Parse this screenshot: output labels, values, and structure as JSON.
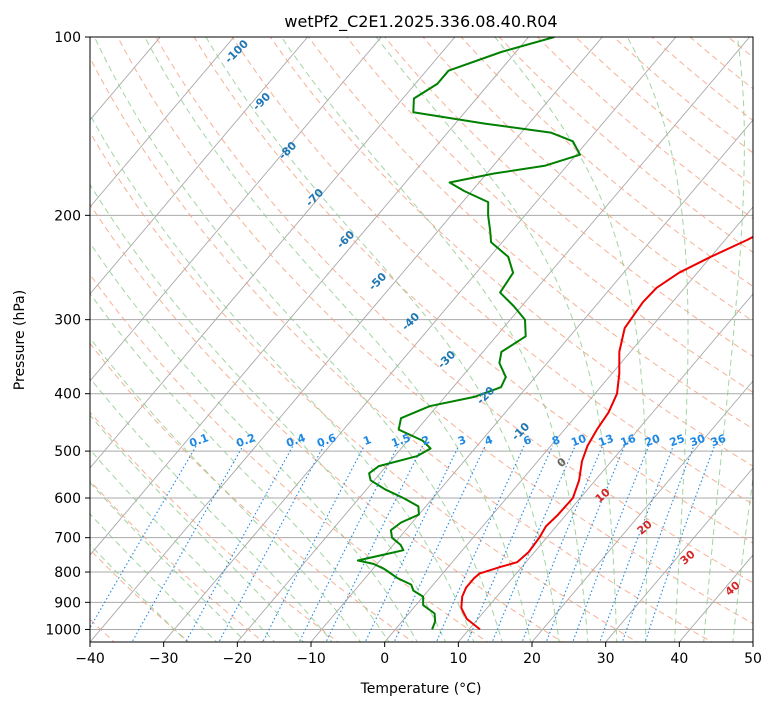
{
  "chart_data": {
    "type": "line",
    "title": "wetPf2_C2E1.2025.336.08.40.R04",
    "xlabel": "Temperature (°C)",
    "ylabel": "Pressure (hPa)",
    "xlim": [
      -40,
      50
    ],
    "ylim": [
      1050,
      100
    ],
    "y_scale": "log",
    "skew": "skew-T log-P",
    "grid": true,
    "x_ticks": [
      -40,
      -30,
      -20,
      -10,
      0,
      10,
      20,
      30,
      40,
      50
    ],
    "y_ticks": [
      1000,
      900,
      800,
      700,
      600,
      500,
      400,
      300,
      200,
      100
    ],
    "series": [
      {
        "color": "#ee0000",
        "points": [
          [
            1000,
            11.5
          ],
          [
            960,
            8.5
          ],
          [
            920,
            6.5
          ],
          [
            880,
            5.3
          ],
          [
            850,
            4.8
          ],
          [
            820,
            4.8
          ],
          [
            805,
            5.0
          ],
          [
            785,
            7.0
          ],
          [
            770,
            8.8
          ],
          [
            740,
            9.2
          ],
          [
            700,
            9.0
          ],
          [
            670,
            8.6
          ],
          [
            640,
            8.9
          ],
          [
            600,
            9.0
          ],
          [
            560,
            7.8
          ],
          [
            520,
            6.0
          ],
          [
            490,
            5.0
          ],
          [
            460,
            4.4
          ],
          [
            430,
            4.0
          ],
          [
            400,
            3.0
          ],
          [
            370,
            1.0
          ],
          [
            340,
            -1.5
          ],
          [
            310,
            -3.5
          ],
          [
            280,
            -4.0
          ],
          [
            265,
            -3.8
          ],
          [
            250,
            -2.5
          ],
          [
            235,
            0.0
          ],
          [
            220,
            3.0
          ],
          [
            205,
            5.5
          ],
          [
            190,
            8.5
          ],
          [
            175,
            11.5
          ],
          [
            160,
            14.0
          ],
          [
            145,
            17.5
          ],
          [
            130,
            21.5
          ],
          [
            120,
            23.0
          ],
          [
            110,
            25.0
          ],
          [
            100,
            25.5
          ]
        ]
      },
      {
        "color": "#008000",
        "points": [
          [
            1000,
            5.0
          ],
          [
            970,
            4.5
          ],
          [
            940,
            3.5
          ],
          [
            910,
            1.0
          ],
          [
            880,
            0.0
          ],
          [
            860,
            -2.0
          ],
          [
            840,
            -3.0
          ],
          [
            820,
            -5.5
          ],
          [
            800,
            -7.5
          ],
          [
            790,
            -8.5
          ],
          [
            775,
            -10.5
          ],
          [
            765,
            -13.0
          ],
          [
            750,
            -10.5
          ],
          [
            735,
            -8.0
          ],
          [
            720,
            -9.0
          ],
          [
            700,
            -11.0
          ],
          [
            680,
            -12.0
          ],
          [
            660,
            -11.5
          ],
          [
            640,
            -10.0
          ],
          [
            620,
            -11.0
          ],
          [
            600,
            -14.0
          ],
          [
            580,
            -17.5
          ],
          [
            560,
            -20.5
          ],
          [
            545,
            -21.5
          ],
          [
            530,
            -21.0
          ],
          [
            510,
            -17.0
          ],
          [
            495,
            -16.0
          ],
          [
            480,
            -18.0
          ],
          [
            460,
            -22.5
          ],
          [
            440,
            -23.5
          ],
          [
            420,
            -21.0
          ],
          [
            405,
            -16.0
          ],
          [
            390,
            -13.5
          ],
          [
            375,
            -14.0
          ],
          [
            355,
            -16.5
          ],
          [
            340,
            -17.5
          ],
          [
            320,
            -16.0
          ],
          [
            300,
            -18.0
          ],
          [
            285,
            -21.0
          ],
          [
            270,
            -24.5
          ],
          [
            250,
            -25.0
          ],
          [
            235,
            -27.5
          ],
          [
            222,
            -31.5
          ],
          [
            212,
            -33.0
          ],
          [
            200,
            -35.0
          ],
          [
            190,
            -36.5
          ],
          [
            182,
            -41.0
          ],
          [
            176,
            -44.0
          ],
          [
            170,
            -39.0
          ],
          [
            165,
            -33.0
          ],
          [
            158,
            -29.5
          ],
          [
            150,
            -32.0
          ],
          [
            145,
            -36.0
          ],
          [
            140,
            -46.0
          ],
          [
            134,
            -57.0
          ],
          [
            127,
            -58.5
          ],
          [
            120,
            -57.0
          ],
          [
            114,
            -57.0
          ],
          [
            106,
            -52.0
          ],
          [
            100,
            -46.5
          ]
        ]
      }
    ],
    "dry_adiabat_labels": [
      "-100",
      "-90",
      "-80",
      "-70",
      "-60",
      "-50",
      "-40",
      "-30",
      "-20",
      "-10"
    ],
    "mixing_ratio_labels": [
      "0.1",
      "0.2",
      "0.4",
      "0.6",
      "1",
      "1.5",
      "2",
      "3",
      "4",
      "6",
      "8",
      "10",
      "13",
      "16",
      "20",
      "25",
      "30",
      "36"
    ],
    "moist_adiabat_labels": [
      "0",
      "10",
      "20",
      "30",
      "40"
    ]
  },
  "colors": {
    "temperature": "#ee0000",
    "dewpoint": "#008000",
    "isotherm": "#a9a9a9",
    "isobar": "#a9a9a9",
    "dry_adiabat": "#f5a383",
    "moist_adiabat": "#8cc98c",
    "mixing_ratio": "#1e88e5",
    "dry_label": "#1f77b4",
    "moist_label": "#d62728"
  }
}
